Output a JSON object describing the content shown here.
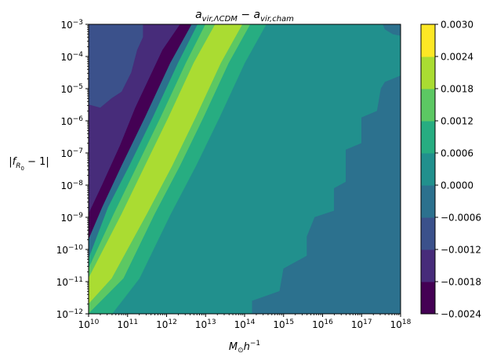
{
  "chart_data": {
    "type": "contourf",
    "title": {
      "base": "a",
      "sub1": "vir,ΛCDM",
      "minus": " − ",
      "sub2": "vir,cham"
    },
    "xlabel": {
      "base": "M",
      "sub": "⊙",
      "tail": "h",
      "sup": "−1"
    },
    "ylabel": {
      "pre": "|f",
      "sub": "R",
      "subsub": "0",
      "post": " − 1|"
    },
    "x_scale": "log",
    "y_scale": "log",
    "xlim_log10": [
      10,
      18
    ],
    "ylim_log10": [
      -12,
      -3
    ],
    "x_ticks": [
      {
        "exp": 10,
        "label_base": "10",
        "label_sup": "10"
      },
      {
        "exp": 11,
        "label_base": "10",
        "label_sup": "11"
      },
      {
        "exp": 12,
        "label_base": "10",
        "label_sup": "12"
      },
      {
        "exp": 13,
        "label_base": "10",
        "label_sup": "13"
      },
      {
        "exp": 14,
        "label_base": "10",
        "label_sup": "14"
      },
      {
        "exp": 15,
        "label_base": "10",
        "label_sup": "15"
      },
      {
        "exp": 16,
        "label_base": "10",
        "label_sup": "16"
      },
      {
        "exp": 17,
        "label_base": "10",
        "label_sup": "17"
      },
      {
        "exp": 18,
        "label_base": "10",
        "label_sup": "18"
      }
    ],
    "y_ticks": [
      {
        "exp": -12,
        "label_base": "10",
        "label_sup": "−12"
      },
      {
        "exp": -11,
        "label_base": "10",
        "label_sup": "−11"
      },
      {
        "exp": -10,
        "label_base": "10",
        "label_sup": "−10"
      },
      {
        "exp": -9,
        "label_base": "10",
        "label_sup": "−9"
      },
      {
        "exp": -8,
        "label_base": "10",
        "label_sup": "−8"
      },
      {
        "exp": -7,
        "label_base": "10",
        "label_sup": "−7"
      },
      {
        "exp": -6,
        "label_base": "10",
        "label_sup": "−6"
      },
      {
        "exp": -5,
        "label_base": "10",
        "label_sup": "−5"
      },
      {
        "exp": -4,
        "label_base": "10",
        "label_sup": "−4"
      },
      {
        "exp": -3,
        "label_base": "10",
        "label_sup": "−3"
      }
    ],
    "levels": [
      -0.0024,
      -0.0018,
      -0.0012,
      -0.0006,
      0.0,
      0.0006,
      0.0012,
      0.0018,
      0.0024,
      0.003
    ],
    "level_colors": [
      "#440154",
      "#472c7a",
      "#3b518b",
      "#2c718e",
      "#21908d",
      "#27ad81",
      "#5cc863",
      "#aadc32",
      "#fde725"
    ],
    "colorbar_ticks": [
      "0.0030",
      "0.0024",
      "0.0018",
      "0.0012",
      "0.0006",
      "0.0000",
      "−0.0006",
      "−0.0012",
      "−0.0018",
      "−0.0024"
    ],
    "regions": [
      {
        "name": "upper-left-plateau",
        "value_range": [
          -0.0012,
          -0.0006
        ],
        "color": "#3b518b",
        "boundary": [
          [
            10,
            -3
          ],
          [
            11.4,
            -3
          ],
          [
            11.4,
            -3.4
          ],
          [
            11.25,
            -3.8
          ],
          [
            11.1,
            -4.5
          ],
          [
            10.85,
            -5.1
          ],
          [
            10.6,
            -5.3
          ],
          [
            10.3,
            -5.6
          ],
          [
            10,
            -5.5
          ]
        ]
      },
      {
        "name": "trough-outer",
        "value_range": [
          -0.0018,
          -0.0012
        ],
        "color": "#472c7a",
        "boundary": [
          [
            11.4,
            -3
          ],
          [
            12.35,
            -3
          ],
          [
            11.9,
            -3.8
          ],
          [
            11.2,
            -5.6
          ],
          [
            10.8,
            -6.8
          ],
          [
            10.35,
            -8
          ],
          [
            10,
            -8.9
          ],
          [
            10,
            -5.5
          ],
          [
            10.3,
            -5.6
          ],
          [
            10.6,
            -5.3
          ],
          [
            10.85,
            -5.1
          ],
          [
            11.1,
            -4.5
          ],
          [
            11.25,
            -3.8
          ],
          [
            11.4,
            -3.4
          ]
        ]
      },
      {
        "name": "trough-core",
        "value_range": [
          -0.0024,
          -0.0018
        ],
        "color": "#440154",
        "boundary": [
          [
            12.35,
            -3
          ],
          [
            12.65,
            -3
          ],
          [
            12.1,
            -4.2
          ],
          [
            11.45,
            -5.9
          ],
          [
            10.85,
            -7.4
          ],
          [
            10.35,
            -8.7
          ],
          [
            10,
            -9.7
          ],
          [
            10,
            -8.9
          ],
          [
            10.35,
            -8
          ],
          [
            10.8,
            -6.8
          ],
          [
            11.2,
            -5.6
          ],
          [
            11.9,
            -3.8
          ]
        ]
      },
      {
        "name": "ridge-edge-1",
        "value_range": [
          -0.0006,
          0.0
        ],
        "color": "#2c718e",
        "boundary": [
          [
            12.65,
            -3
          ],
          [
            12.8,
            -3
          ],
          [
            12.3,
            -4.2
          ],
          [
            11.65,
            -5.9
          ],
          [
            11.05,
            -7.4
          ],
          [
            10.5,
            -8.7
          ],
          [
            10,
            -10.3
          ],
          [
            10,
            -9.7
          ],
          [
            10.35,
            -8.7
          ],
          [
            10.85,
            -7.4
          ],
          [
            11.45,
            -5.9
          ],
          [
            12.1,
            -4.2
          ]
        ]
      },
      {
        "name": "ridge-edge-2",
        "value_range": [
          0.0006,
          0.0012
        ],
        "color": "#27ad81",
        "boundary": [
          [
            12.8,
            -3
          ],
          [
            13.0,
            -3
          ],
          [
            12.5,
            -4.2
          ],
          [
            11.85,
            -5.9
          ],
          [
            11.25,
            -7.4
          ],
          [
            10.65,
            -8.9
          ],
          [
            10,
            -10.6
          ],
          [
            10,
            -10.3
          ],
          [
            10.5,
            -8.7
          ],
          [
            11.05,
            -7.4
          ],
          [
            11.65,
            -5.9
          ],
          [
            12.3,
            -4.2
          ]
        ]
      },
      {
        "name": "ridge-edge-3",
        "value_range": [
          0.0012,
          0.0018
        ],
        "color": "#5cc863",
        "boundary": [
          [
            13.0,
            -3
          ],
          [
            13.25,
            -3
          ],
          [
            12.7,
            -4.2
          ],
          [
            12.05,
            -5.9
          ],
          [
            11.45,
            -7.4
          ],
          [
            10.85,
            -8.9
          ],
          [
            10,
            -10.9
          ],
          [
            10,
            -10.6
          ],
          [
            10.65,
            -8.9
          ],
          [
            11.25,
            -7.4
          ],
          [
            11.85,
            -5.9
          ],
          [
            12.5,
            -4.2
          ]
        ]
      },
      {
        "name": "ridge-peak",
        "value_range": [
          0.0018,
          0.0024
        ],
        "color": "#aadc32",
        "boundary": [
          [
            13.25,
            -3
          ],
          [
            13.95,
            -3
          ],
          [
            13.4,
            -4.2
          ],
          [
            12.75,
            -5.9
          ],
          [
            12.15,
            -7.4
          ],
          [
            11.5,
            -8.9
          ],
          [
            10.6,
            -10.9
          ],
          [
            10,
            -11.7
          ],
          [
            10,
            -10.9
          ],
          [
            10.85,
            -8.9
          ],
          [
            11.45,
            -7.4
          ],
          [
            12.05,
            -5.9
          ],
          [
            12.7,
            -4.2
          ]
        ]
      },
      {
        "name": "ridge-right-1",
        "value_range": [
          0.0012,
          0.0018
        ],
        "color": "#5cc863",
        "boundary": [
          [
            13.95,
            -3
          ],
          [
            14.15,
            -3
          ],
          [
            13.6,
            -4.2
          ],
          [
            12.95,
            -5.9
          ],
          [
            12.35,
            -7.4
          ],
          [
            11.7,
            -8.9
          ],
          [
            10.9,
            -10.9
          ],
          [
            10,
            -12
          ],
          [
            10,
            -11.7
          ],
          [
            10.6,
            -10.9
          ],
          [
            11.5,
            -8.9
          ],
          [
            12.15,
            -7.4
          ],
          [
            12.75,
            -5.9
          ],
          [
            13.4,
            -4.2
          ]
        ]
      },
      {
        "name": "ridge-right-2",
        "value_range": [
          0.0006,
          0.0012
        ],
        "color": "#27ad81",
        "boundary": [
          [
            14.15,
            -3
          ],
          [
            14.55,
            -3
          ],
          [
            14.0,
            -4.2
          ],
          [
            13.35,
            -5.9
          ],
          [
            12.75,
            -7.4
          ],
          [
            12.1,
            -8.9
          ],
          [
            11.3,
            -10.9
          ],
          [
            10.6,
            -12
          ],
          [
            10,
            -12
          ],
          [
            10.9,
            -10.9
          ],
          [
            11.7,
            -8.9
          ],
          [
            12.35,
            -7.4
          ],
          [
            12.95,
            -5.9
          ],
          [
            13.6,
            -4.2
          ]
        ]
      },
      {
        "name": "lower-right-plateau",
        "value_range": [
          -0.0006,
          0.0
        ],
        "color": "#2c718e",
        "boundary": [
          [
            18,
            -4.6
          ],
          [
            18,
            -12
          ],
          [
            14.2,
            -12
          ],
          [
            14.2,
            -11.6
          ],
          [
            14.9,
            -11.3
          ],
          [
            15.0,
            -10.6
          ],
          [
            15.6,
            -10.2
          ],
          [
            15.6,
            -9.6
          ],
          [
            15.8,
            -9.0
          ],
          [
            16.3,
            -8.8
          ],
          [
            16.3,
            -8.1
          ],
          [
            16.6,
            -7.9
          ],
          [
            16.6,
            -6.9
          ],
          [
            17.0,
            -6.7
          ],
          [
            17.0,
            -5.9
          ],
          [
            17.4,
            -5.7
          ],
          [
            17.5,
            -5.0
          ],
          [
            17.6,
            -4.8
          ]
        ]
      },
      {
        "name": "upper-right-band",
        "value_range": [
          -0.0006,
          0.0
        ],
        "color": "#2c718e",
        "boundary": [
          [
            17.55,
            -3
          ],
          [
            18,
            -3
          ],
          [
            18,
            -3.35
          ],
          [
            17.8,
            -3.3
          ],
          [
            17.6,
            -3.15
          ]
        ]
      }
    ],
    "background": {
      "value_range": [
        0.0,
        0.0006
      ],
      "color": "#21908d"
    }
  }
}
